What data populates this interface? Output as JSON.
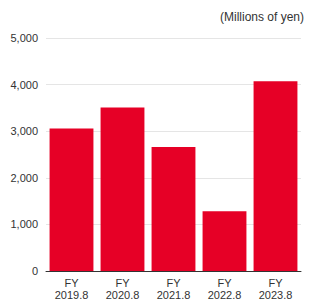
{
  "chart_data": {
    "type": "bar",
    "annotation": "(Millions of yen)",
    "categories": [
      "FY\n2019.8",
      "FY\n2020.8",
      "FY\n2021.8",
      "FY\n2022.8",
      "FY\n2023.8"
    ],
    "values": [
      3060,
      3510,
      2660,
      1280,
      4070
    ],
    "color": "#e60026",
    "ylim": [
      0,
      5000
    ],
    "yticks": [
      0,
      {
        "value": 1000,
        "label": "1,000"
      },
      {
        "value": 2000,
        "label": "2,000"
      },
      {
        "value": 3000,
        "label": "3,000"
      },
      {
        "value": 4000,
        "label": "4,000"
      },
      {
        "value": 5000,
        "label": "5,000"
      }
    ],
    "grid": true
  }
}
